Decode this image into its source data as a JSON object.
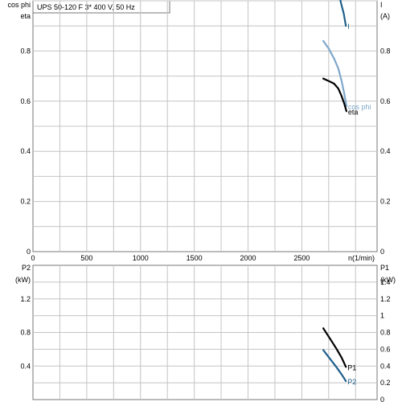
{
  "title": "UPS 50-120 F    3* 400 V, 50 Hz",
  "colors": {
    "eta": "#000000",
    "cos_phi": "#7fa8cc",
    "I": "#1f5f8b",
    "P1": "#000000",
    "P2": "#1f5f8b",
    "grid": "#c4c4c4"
  },
  "chart_data": [
    {
      "type": "line",
      "name": "upper",
      "xlabel": "n(1/min)",
      "xlim": [
        0,
        3200
      ],
      "x_ticks": [
        0,
        500,
        1000,
        1500,
        2000,
        2500
      ],
      "left_axis": {
        "labels": [
          "cos phi",
          "eta"
        ],
        "ylim": [
          0,
          1
        ],
        "ticks": [
          0,
          0.2,
          0.4,
          0.6,
          0.8
        ]
      },
      "right_axis": {
        "labels": [
          "I",
          "(A)"
        ],
        "ylim": [
          0,
          1
        ],
        "ticks": [
          0,
          0.2,
          0.4,
          0.6,
          0.8
        ]
      },
      "grid": true,
      "series": [
        {
          "name": "I",
          "axis": "right",
          "color": "#1f5f8b",
          "x": [
            2815,
            2840,
            2865,
            2890,
            2910
          ],
          "y": [
            1.1,
            1.04,
            0.99,
            0.95,
            0.9
          ]
        },
        {
          "name": "cos phi",
          "axis": "left",
          "color": "#7fa8cc",
          "x": [
            2700,
            2750,
            2800,
            2840,
            2870,
            2895,
            2915
          ],
          "y": [
            0.84,
            0.81,
            0.77,
            0.73,
            0.68,
            0.63,
            0.58
          ]
        },
        {
          "name": "eta",
          "axis": "left",
          "color": "#000000",
          "x": [
            2700,
            2750,
            2800,
            2840,
            2870,
            2895,
            2915
          ],
          "y": [
            0.69,
            0.68,
            0.67,
            0.65,
            0.62,
            0.59,
            0.56
          ]
        }
      ]
    },
    {
      "type": "line",
      "name": "lower",
      "xlim": [
        0,
        3200
      ],
      "left_axis": {
        "labels": [
          "P2",
          "(kW)"
        ],
        "ylim": [
          0,
          1.6
        ],
        "ticks": [
          0.4,
          0.8,
          1.2
        ]
      },
      "right_axis": {
        "labels": [
          "P1",
          "(kW)"
        ],
        "ylim": [
          0,
          1.6
        ],
        "ticks": [
          0,
          0.2,
          0.4,
          0.6,
          0.8,
          1,
          1.2,
          1.4
        ]
      },
      "grid": true,
      "series": [
        {
          "name": "P1",
          "axis": "right",
          "color": "#000000",
          "x": [
            2700,
            2760,
            2820,
            2870,
            2910
          ],
          "y": [
            0.85,
            0.73,
            0.61,
            0.5,
            0.39
          ]
        },
        {
          "name": "P2",
          "axis": "left",
          "color": "#1f5f8b",
          "x": [
            2700,
            2760,
            2820,
            2870,
            2910
          ],
          "y": [
            0.59,
            0.49,
            0.39,
            0.3,
            0.22
          ]
        }
      ]
    }
  ]
}
